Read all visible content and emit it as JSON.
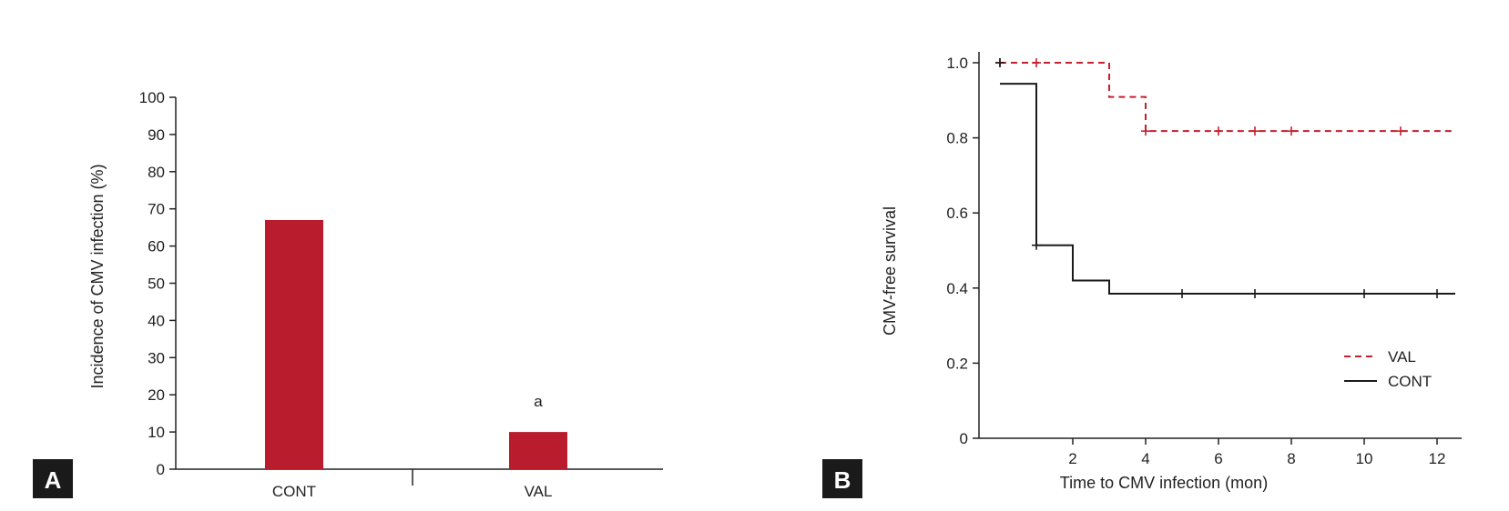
{
  "colors": {
    "bar": "#b81c2d",
    "val_line": "#c4202f",
    "cont_line": "#1a1a1a",
    "panel_label_bg": "#1a1a1a"
  },
  "chart_data": [
    {
      "panel": "A",
      "type": "bar",
      "categories": [
        "CONT",
        "VAL"
      ],
      "values": [
        67,
        10
      ],
      "ylabel": "Incidence of CMV infection (%)",
      "xlabel": "",
      "ylim": [
        0,
        100
      ],
      "yticks": [
        "0",
        "10",
        "20",
        "30",
        "40",
        "50",
        "60",
        "70",
        "80",
        "90",
        "100"
      ],
      "annotations": [
        {
          "category": "VAL",
          "text": "a"
        }
      ]
    },
    {
      "panel": "B",
      "type": "line",
      "xlabel": "Time to CMV infection (mon)",
      "ylabel": "CMV-free survival",
      "xlim": [
        -0.7,
        12.5
      ],
      "ylim": [
        0,
        1.05
      ],
      "xticks": [
        "2",
        "4",
        "6",
        "8",
        "10",
        "12"
      ],
      "yticks": [
        "0",
        "0.2",
        "0.4",
        "0.6",
        "0.8",
        "1.0"
      ],
      "legend_position": "bottom-right",
      "series": [
        {
          "name": "VAL",
          "style": "dashed",
          "steps": [
            [
              0,
              1.0
            ],
            [
              3,
              0.909
            ],
            [
              4,
              0.818
            ],
            [
              12.5,
              0.818
            ]
          ],
          "censored": [
            [
              0,
              1.0
            ],
            [
              1,
              1.0
            ],
            [
              4,
              0.818
            ],
            [
              6,
              0.818
            ],
            [
              7,
              0.818
            ],
            [
              8,
              0.818
            ],
            [
              11,
              0.818
            ]
          ]
        },
        {
          "name": "CONT",
          "style": "solid",
          "steps": [
            [
              0,
              0.944
            ],
            [
              1,
              0.514
            ],
            [
              2,
              0.42
            ],
            [
              3,
              0.385
            ],
            [
              12.5,
              0.385
            ]
          ],
          "censored": [
            [
              0,
              1.0
            ],
            [
              1,
              0.514
            ],
            [
              5,
              0.385
            ],
            [
              7,
              0.385
            ],
            [
              10,
              0.385
            ],
            [
              12,
              0.385
            ]
          ]
        }
      ]
    }
  ]
}
